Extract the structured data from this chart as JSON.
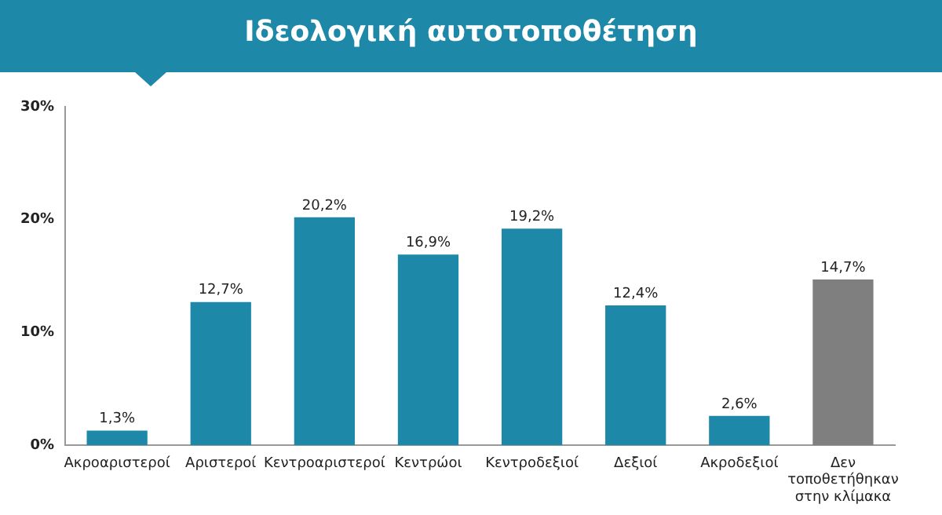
{
  "chart_data": {
    "type": "bar",
    "title": "Ιδεολογική αυτοτοποθέτηση",
    "categories": [
      "Ακροαριστεροί",
      "Αριστεροί",
      "Κεντροαριστεροί",
      "Κεντρώοι",
      "Κεντροδεξιοί",
      "Δεξιοί",
      "Ακροδεξιοί",
      "Δεν τοποθετήθηκαν στην κλίμακα"
    ],
    "values": [
      1.3,
      12.7,
      20.2,
      16.9,
      19.2,
      12.4,
      2.6,
      14.7
    ],
    "colors": [
      "#1e88a8",
      "#1e88a8",
      "#1e88a8",
      "#1e88a8",
      "#1e88a8",
      "#1e88a8",
      "#1e88a8",
      "#7f7f7f"
    ],
    "value_labels": [
      "1,3%",
      "12,7%",
      "20,2%",
      "16,9%",
      "19,2%",
      "12,4%",
      "2,6%",
      "14,7%"
    ],
    "ylim": [
      0,
      30
    ],
    "yticks": [
      {
        "value": 0,
        "label": "0%"
      },
      {
        "value": 10,
        "label": "10%"
      },
      {
        "value": 20,
        "label": "20%"
      },
      {
        "value": 30,
        "label": "30%"
      }
    ],
    "grid": false,
    "legend": false
  }
}
